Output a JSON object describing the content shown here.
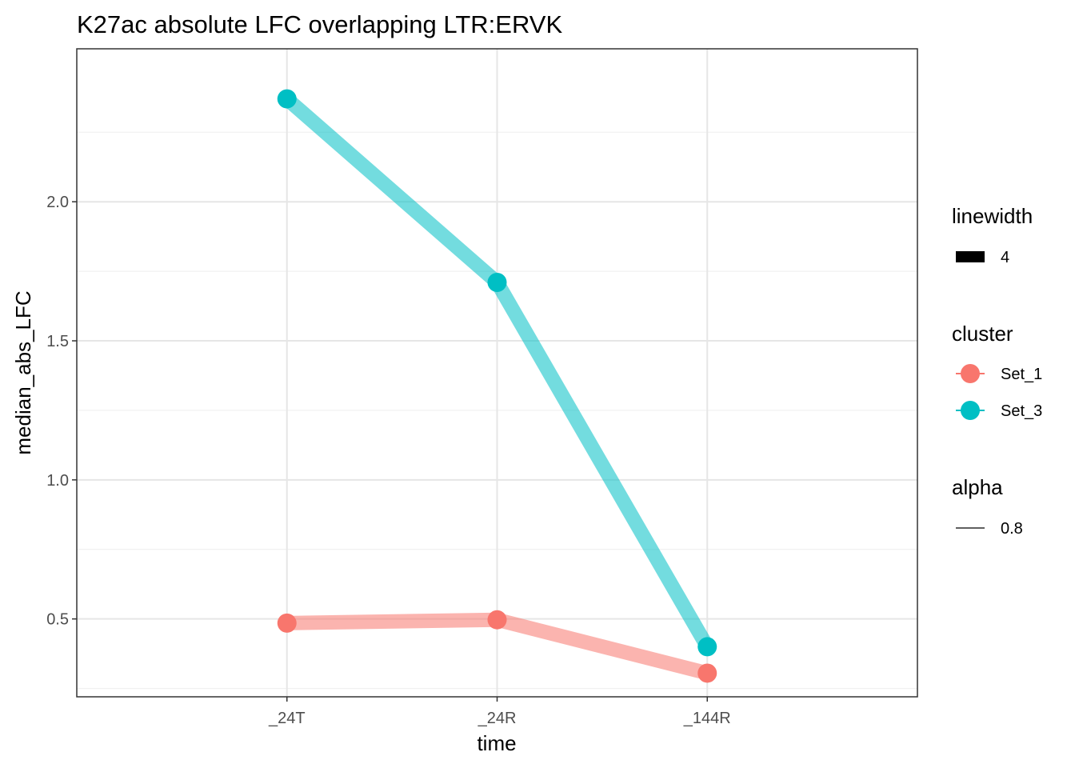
{
  "chart_data": {
    "type": "line",
    "title": "K27ac absolute LFC overlapping LTR:ERVK",
    "xlabel": "time",
    "ylabel": "median_abs_LFC",
    "categories": [
      "_24T",
      "_24R",
      "_144R"
    ],
    "y_ticks": [
      0.5,
      1.0,
      1.5,
      2.0
    ],
    "y_tick_labels": [
      "0.5",
      "1.0",
      "1.5",
      "2.0"
    ],
    "ylim": [
      0.22,
      2.55
    ],
    "grid": true,
    "series": [
      {
        "name": "Set_1",
        "color": "#F8766D",
        "values": [
          0.485,
          0.497,
          0.305
        ]
      },
      {
        "name": "Set_3",
        "color": "#00BFC4",
        "values": [
          2.37,
          1.71,
          0.4
        ]
      }
    ],
    "legend": {
      "position": "right",
      "groups": [
        {
          "title": "linewidth",
          "items": [
            {
              "label": "4",
              "kind": "thick-bar",
              "color": "#000000"
            }
          ]
        },
        {
          "title": "cluster",
          "items": [
            {
              "label": "Set_1",
              "kind": "point-line",
              "color": "#F8766D"
            },
            {
              "label": "Set_3",
              "kind": "point-line",
              "color": "#00BFC4"
            }
          ]
        },
        {
          "title": "alpha",
          "items": [
            {
              "label": "0.8",
              "kind": "thin-line",
              "color": "#000000"
            }
          ]
        }
      ]
    }
  }
}
